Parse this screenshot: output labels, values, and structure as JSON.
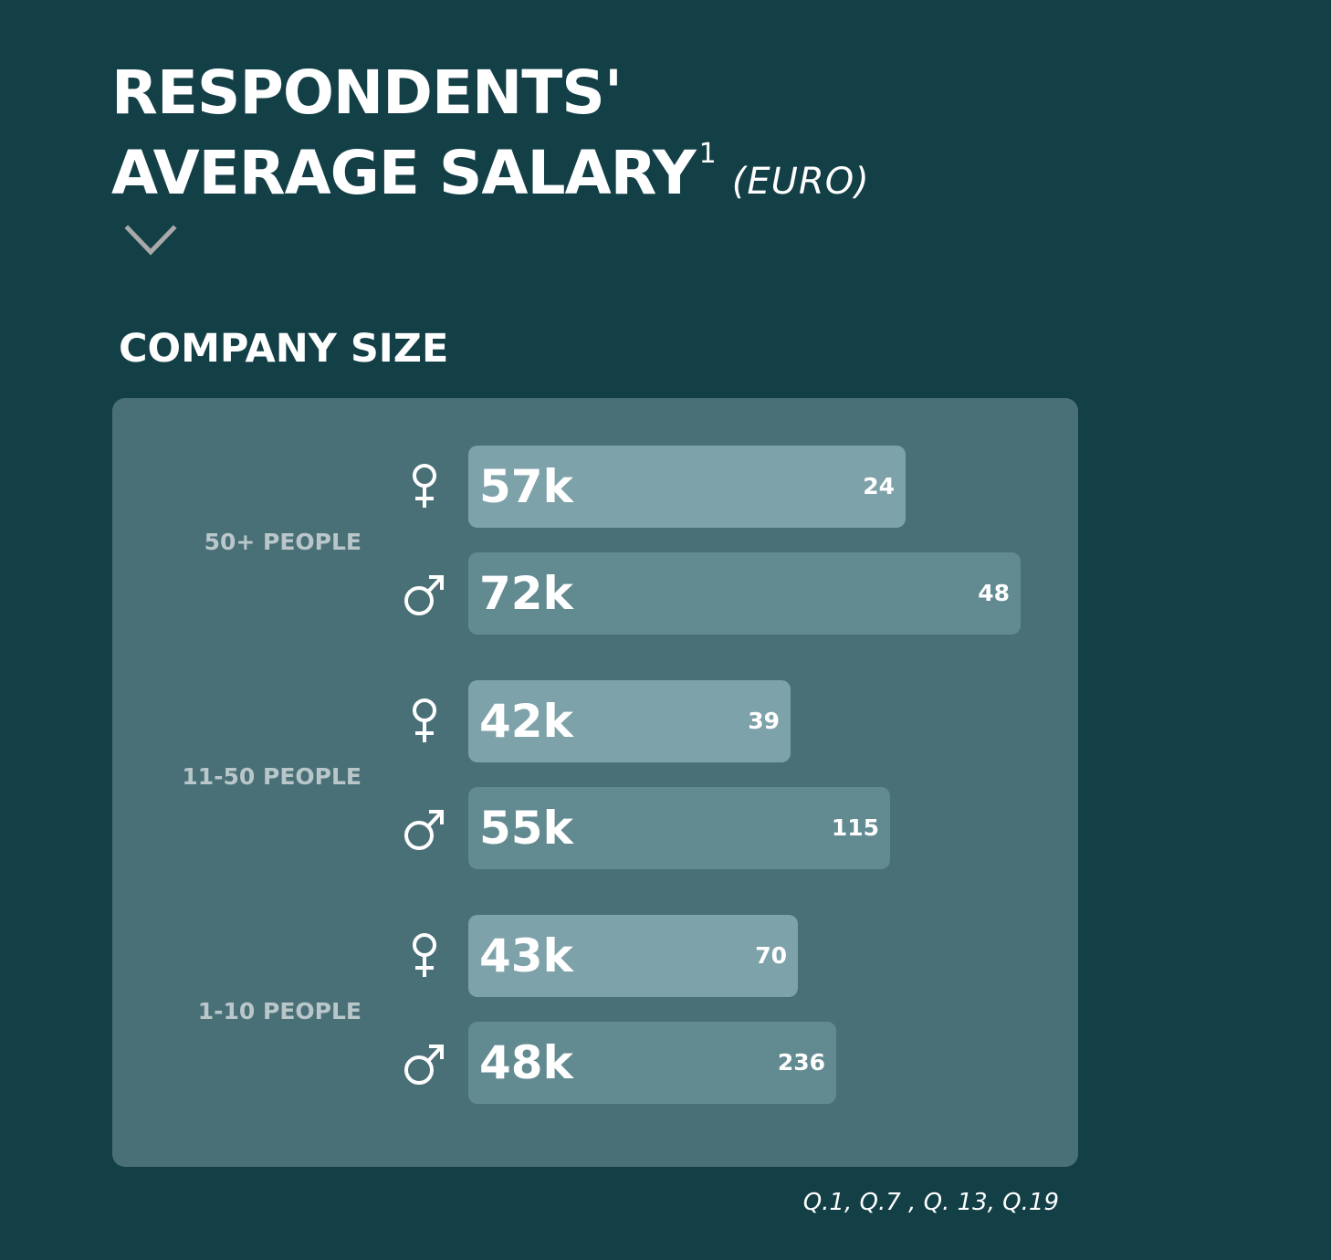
{
  "header": {
    "title_line1": "RESPONDENTS'",
    "title_line2": "AVERAGE SALARY",
    "footnote_marker": "1",
    "unit": "(EURO)",
    "chevron_icon": "chevron-down-icon",
    "chevron_color": "#a9a9a9"
  },
  "section_title": "COMPANY SIZE",
  "source": "Q.1, Q.7 , Q. 13, Q.19",
  "colors": {
    "background": "#133f47",
    "panel": "#4a7077",
    "female_bar": "#7ea2a9",
    "male_bar": "#628a91",
    "group_label": "#b9c7ca",
    "text": "#ffffff"
  },
  "chart_data": {
    "type": "bar",
    "orientation": "horizontal",
    "title": "COMPANY SIZE",
    "value_unit": "EURO",
    "categories": [
      "50+ PEOPLE",
      "11-50 PEOPLE",
      "1-10 PEOPLE"
    ],
    "groups": [
      {
        "label": "50+ PEOPLE",
        "bars": [
          {
            "gender": "female",
            "icon": "female-symbol-icon",
            "value": 57,
            "value_label": "57k",
            "count": "24"
          },
          {
            "gender": "male",
            "icon": "male-symbol-icon",
            "value": 72,
            "value_label": "72k",
            "count": "48"
          }
        ]
      },
      {
        "label": "11-50 PEOPLE",
        "bars": [
          {
            "gender": "female",
            "icon": "female-symbol-icon",
            "value": 42,
            "value_label": "42k",
            "count": "39"
          },
          {
            "gender": "male",
            "icon": "male-symbol-icon",
            "value": 55,
            "value_label": "55k",
            "count": "115"
          }
        ]
      },
      {
        "label": "1-10 PEOPLE",
        "bars": [
          {
            "gender": "female",
            "icon": "female-symbol-icon",
            "value": 43,
            "value_label": "43k",
            "count": "70"
          },
          {
            "gender": "male",
            "icon": "male-symbol-icon",
            "value": 48,
            "value_label": "48k",
            "count": "236"
          }
        ]
      }
    ]
  }
}
